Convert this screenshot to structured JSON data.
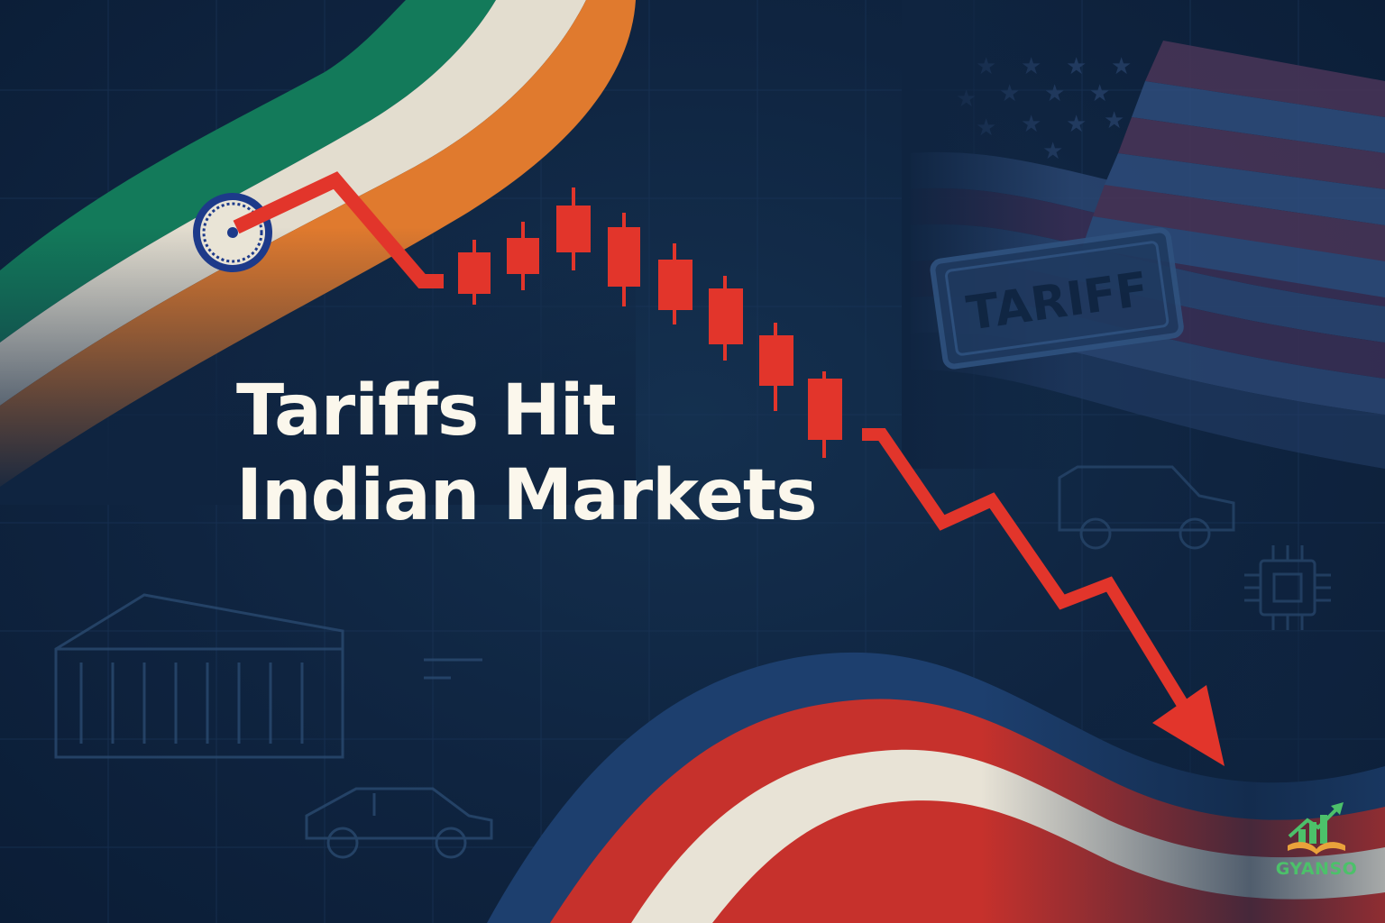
{
  "headline": {
    "line1": "Tariffs Hit",
    "line2": "Indian Markets"
  },
  "stamp": {
    "text": "TARIFF"
  },
  "brand": {
    "name": "GYANSO"
  },
  "colors": {
    "background": "#0f2440",
    "india_saffron": "#e07a2e",
    "india_white": "#e8e3d6",
    "india_green": "#137a5a",
    "us_red": "#c6312c",
    "us_blue": "#1d3f6e",
    "trend_red": "#e2352b",
    "headline_text": "#fbf7ec",
    "brand_green": "#4cc16a"
  },
  "icons": [
    "ashoka-chakra-icon",
    "tariff-stamp-icon",
    "shipping-container-icon",
    "car-icon",
    "suv-icon",
    "microchip-icon",
    "brand-logo-icon"
  ]
}
